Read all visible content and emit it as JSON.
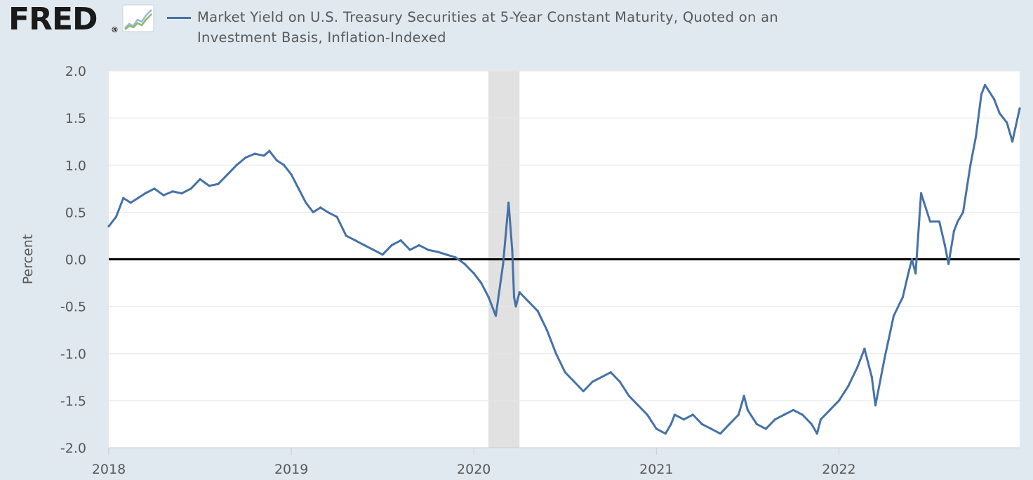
{
  "header": {
    "logo_text": "FRED",
    "logo_reg": "®",
    "series_color": "#4572a7",
    "title_line1": "Market Yield on U.S. Treasury Securities at 5-Year Constant Maturity, Quoted on an",
    "title_line2": "Investment Basis, Inflation-Indexed"
  },
  "chart_data": {
    "type": "line",
    "title": "Market Yield on U.S. Treasury Securities at 5-Year Constant Maturity, Quoted on an Investment Basis, Inflation-Indexed",
    "xlabel": "",
    "ylabel": "Percent",
    "xlim": [
      2018.0,
      2022.99
    ],
    "ylim": [
      -2.0,
      2.0
    ],
    "yticks": [
      2.0,
      1.5,
      1.0,
      0.5,
      0.0,
      -0.5,
      -1.0,
      -1.5,
      -2.0
    ],
    "ytick_labels": [
      "2.0",
      "1.5",
      "1.0",
      "0.5",
      "0.0",
      "-0.5",
      "-1.0",
      "-1.5",
      "-2.0"
    ],
    "xticks": [
      2018,
      2019,
      2020,
      2021,
      2022
    ],
    "xtick_labels": [
      "2018",
      "2019",
      "2020",
      "2021",
      "2022"
    ],
    "grid": true,
    "zero_line": true,
    "recession_shading": [
      [
        2020.08,
        2020.25
      ]
    ],
    "series": [
      {
        "name": "Market Yield on U.S. Treasury Securities at 5-Year Constant Maturity, Quoted on an Investment Basis, Inflation-Indexed",
        "color": "#4572a7",
        "x": [
          2018.0,
          2018.04,
          2018.08,
          2018.12,
          2018.16,
          2018.2,
          2018.25,
          2018.3,
          2018.35,
          2018.4,
          2018.45,
          2018.5,
          2018.55,
          2018.6,
          2018.65,
          2018.7,
          2018.75,
          2018.8,
          2018.85,
          2018.88,
          2018.92,
          2018.96,
          2019.0,
          2019.04,
          2019.08,
          2019.12,
          2019.16,
          2019.2,
          2019.25,
          2019.3,
          2019.35,
          2019.4,
          2019.45,
          2019.5,
          2019.55,
          2019.6,
          2019.65,
          2019.7,
          2019.75,
          2019.8,
          2019.85,
          2019.9,
          2019.95,
          2020.0,
          2020.04,
          2020.08,
          2020.12,
          2020.16,
          2020.19,
          2020.21,
          2020.22,
          2020.23,
          2020.25,
          2020.3,
          2020.35,
          2020.4,
          2020.45,
          2020.5,
          2020.55,
          2020.6,
          2020.65,
          2020.7,
          2020.75,
          2020.8,
          2020.85,
          2020.9,
          2020.95,
          2021.0,
          2021.05,
          2021.08,
          2021.1,
          2021.15,
          2021.2,
          2021.25,
          2021.3,
          2021.35,
          2021.4,
          2021.45,
          2021.48,
          2021.5,
          2021.55,
          2021.6,
          2021.65,
          2021.7,
          2021.75,
          2021.8,
          2021.85,
          2021.88,
          2021.9,
          2021.95,
          2022.0,
          2022.05,
          2022.1,
          2022.14,
          2022.16,
          2022.18,
          2022.2,
          2022.25,
          2022.3,
          2022.35,
          2022.38,
          2022.4,
          2022.42,
          2022.45,
          2022.5,
          2022.55,
          2022.58,
          2022.6,
          2022.63,
          2022.65,
          2022.68,
          2022.72,
          2022.75,
          2022.78,
          2022.8,
          2022.85,
          2022.88,
          2022.9,
          2022.92,
          2022.95,
          2022.99
        ],
        "y": [
          0.35,
          0.45,
          0.65,
          0.6,
          0.65,
          0.7,
          0.75,
          0.68,
          0.72,
          0.7,
          0.75,
          0.85,
          0.78,
          0.8,
          0.9,
          1.0,
          1.08,
          1.12,
          1.1,
          1.15,
          1.05,
          1.0,
          0.9,
          0.75,
          0.6,
          0.5,
          0.55,
          0.5,
          0.45,
          0.25,
          0.2,
          0.15,
          0.1,
          0.05,
          0.15,
          0.2,
          0.1,
          0.15,
          0.1,
          0.08,
          0.05,
          0.02,
          -0.05,
          -0.15,
          -0.25,
          -0.4,
          -0.6,
          -0.05,
          0.6,
          0.1,
          -0.4,
          -0.5,
          -0.35,
          -0.45,
          -0.55,
          -0.75,
          -1.0,
          -1.2,
          -1.3,
          -1.4,
          -1.3,
          -1.25,
          -1.2,
          -1.3,
          -1.45,
          -1.55,
          -1.65,
          -1.8,
          -1.85,
          -1.75,
          -1.65,
          -1.7,
          -1.65,
          -1.75,
          -1.8,
          -1.85,
          -1.75,
          -1.65,
          -1.45,
          -1.6,
          -1.75,
          -1.8,
          -1.7,
          -1.65,
          -1.6,
          -1.65,
          -1.75,
          -1.85,
          -1.7,
          -1.6,
          -1.5,
          -1.35,
          -1.15,
          -0.95,
          -1.1,
          -1.25,
          -1.55,
          -1.05,
          -0.6,
          -0.4,
          -0.15,
          0.0,
          -0.15,
          0.7,
          0.4,
          0.4,
          0.15,
          -0.05,
          0.3,
          0.4,
          0.5,
          1.0,
          1.3,
          1.75,
          1.85,
          1.7,
          1.55,
          1.5,
          1.45,
          1.25,
          1.6
        ]
      }
    ]
  }
}
